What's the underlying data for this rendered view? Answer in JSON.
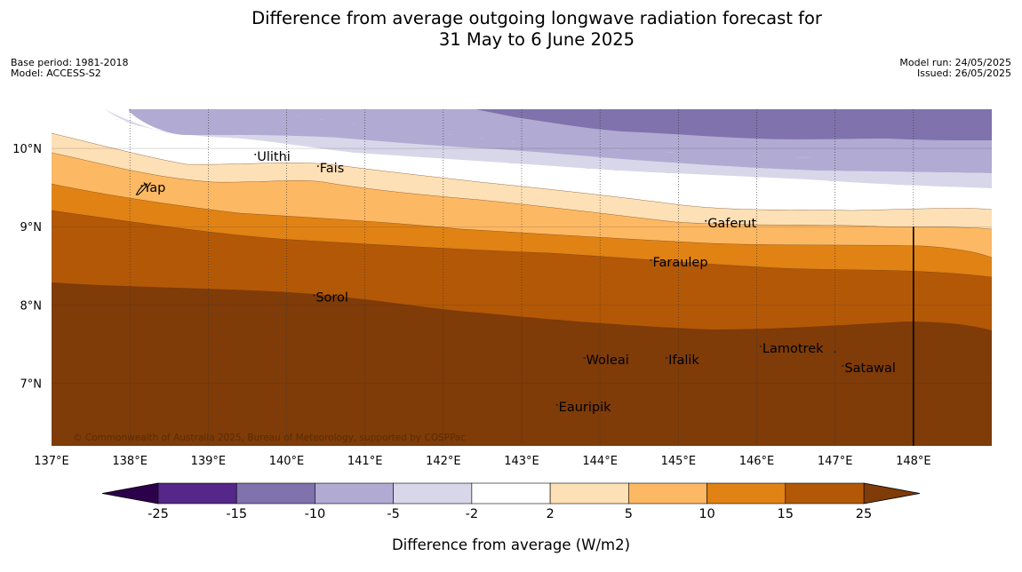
{
  "title": {
    "line1": "Difference from average outgoing longwave radiation forecast for",
    "line2": "31 May to 6 June 2025"
  },
  "meta_left": {
    "base_period": "Base period: 1981-2018",
    "model": "Model: ACCESS-S2"
  },
  "meta_right": {
    "model_run": "Model run: 24/05/2025",
    "issued": "Issued: 26/05/2025"
  },
  "map": {
    "lon_range": [
      137,
      149
    ],
    "lat_range": [
      6.2,
      10.5
    ],
    "lon_ticks": [
      "137°E",
      "138°E",
      "139°E",
      "140°E",
      "141°E",
      "142°E",
      "143°E",
      "144°E",
      "145°E",
      "146°E",
      "147°E",
      "148°E"
    ],
    "lat_ticks": [
      "10°N",
      "9°N",
      "8°N",
      "7°N"
    ],
    "places": [
      {
        "name": "Yap",
        "lon": 138.15,
        "lat": 9.5
      },
      {
        "name": "Ulithi",
        "lon": 139.6,
        "lat": 9.9
      },
      {
        "name": "Fais",
        "lon": 140.4,
        "lat": 9.75
      },
      {
        "name": "Gaferut",
        "lon": 145.35,
        "lat": 9.05
      },
      {
        "name": "Faraulep",
        "lon": 144.65,
        "lat": 8.55
      },
      {
        "name": "Sorol",
        "lon": 140.35,
        "lat": 8.1
      },
      {
        "name": "Woleai",
        "lon": 143.8,
        "lat": 7.3
      },
      {
        "name": "Ifalik",
        "lon": 144.85,
        "lat": 7.3
      },
      {
        "name": "Lamotrek",
        "lon": 146.05,
        "lat": 7.45
      },
      {
        "name": "Satawal",
        "lon": 147.1,
        "lat": 7.2
      },
      {
        "name": "Eauripik",
        "lon": 143.45,
        "lat": 6.7
      }
    ],
    "copyright": "© Commonwealth of Australia 2025, Bureau of Meteorology, supported by COSPPac",
    "boundary_lon": 148,
    "bands": [
      {
        "level": "-15 to -10",
        "color": "#8072ac"
      },
      {
        "level": "-10 to -5",
        "color": "#b1aad2"
      },
      {
        "level": "-5 to -2",
        "color": "#d8d7ea"
      },
      {
        "level": "-2 to 2",
        "color": "#ffffff"
      },
      {
        "level": "2 to 5",
        "color": "#fee0b6"
      },
      {
        "level": "5 to 10",
        "color": "#fdb863"
      },
      {
        "level": "10 to 15",
        "color": "#e08214"
      },
      {
        "level": "15 to 25",
        "color": "#b35806"
      },
      {
        "level": "> 25",
        "color": "#7f3b08"
      }
    ]
  },
  "colorbar": {
    "ticks": [
      "-25",
      "-15",
      "-10",
      "-5",
      "-2",
      "2",
      "5",
      "10",
      "15",
      "25"
    ],
    "colors": [
      "#542788",
      "#8072ac",
      "#b1aad2",
      "#d8d7ea",
      "#ffffff",
      "#fee0b6",
      "#fdb863",
      "#e08214",
      "#b35806"
    ],
    "under_color": "#2d004b",
    "over_color": "#7f3b08",
    "label": "Difference from average (W/m2)"
  }
}
